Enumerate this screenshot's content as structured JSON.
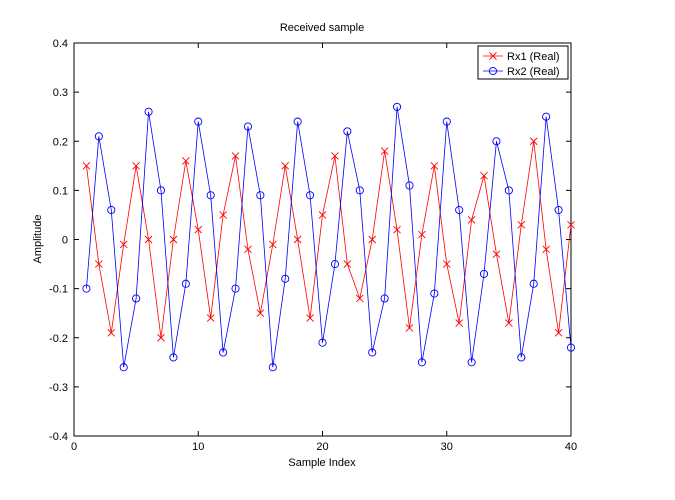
{
  "chart_data": {
    "type": "line",
    "title": "Received sample",
    "xlabel": "Sample Index",
    "ylabel": "Amplitude",
    "xlim": [
      0,
      40
    ],
    "ylim": [
      -0.4,
      0.4
    ],
    "x_ticks": [
      "0",
      "10",
      "20",
      "30",
      "40"
    ],
    "y_ticks": [
      "-0.4",
      "-0.3",
      "-0.2",
      "-0.1",
      "0",
      "0.1",
      "0.2",
      "0.3",
      "0.4"
    ],
    "grid": false,
    "legend_position": "top-right",
    "x": [
      1,
      2,
      3,
      4,
      5,
      6,
      7,
      8,
      9,
      10,
      11,
      12,
      13,
      14,
      15,
      16,
      17,
      18,
      19,
      20,
      21,
      22,
      23,
      24,
      25,
      26,
      27,
      28,
      29,
      30,
      31,
      32,
      33,
      34,
      35,
      36,
      37,
      38,
      39,
      40
    ],
    "series": [
      {
        "name": "Rx1 (Real)",
        "color": "#ff0000",
        "marker": "x",
        "values": [
          0.15,
          -0.05,
          -0.19,
          -0.01,
          0.15,
          0.0,
          -0.2,
          0.0,
          0.16,
          0.02,
          -0.16,
          0.05,
          0.17,
          -0.02,
          -0.15,
          -0.01,
          0.15,
          0.0,
          -0.16,
          0.05,
          0.17,
          -0.05,
          -0.12,
          0.0,
          0.18,
          0.02,
          -0.18,
          0.01,
          0.15,
          -0.05,
          -0.17,
          0.04,
          0.13,
          -0.03,
          -0.17,
          0.03,
          0.2,
          -0.02,
          -0.19,
          0.03
        ]
      },
      {
        "name": "Rx2 (Real)",
        "color": "#0000ff",
        "marker": "o",
        "values": [
          -0.1,
          0.21,
          0.06,
          -0.26,
          -0.12,
          0.26,
          0.1,
          -0.24,
          -0.09,
          0.24,
          0.09,
          -0.23,
          -0.1,
          0.23,
          0.09,
          -0.26,
          -0.08,
          0.24,
          0.09,
          -0.21,
          -0.05,
          0.22,
          0.1,
          -0.23,
          -0.12,
          0.27,
          0.11,
          -0.25,
          -0.11,
          0.24,
          0.06,
          -0.25,
          -0.07,
          0.2,
          0.1,
          -0.24,
          -0.09,
          0.25,
          0.06,
          -0.22
        ]
      }
    ]
  }
}
